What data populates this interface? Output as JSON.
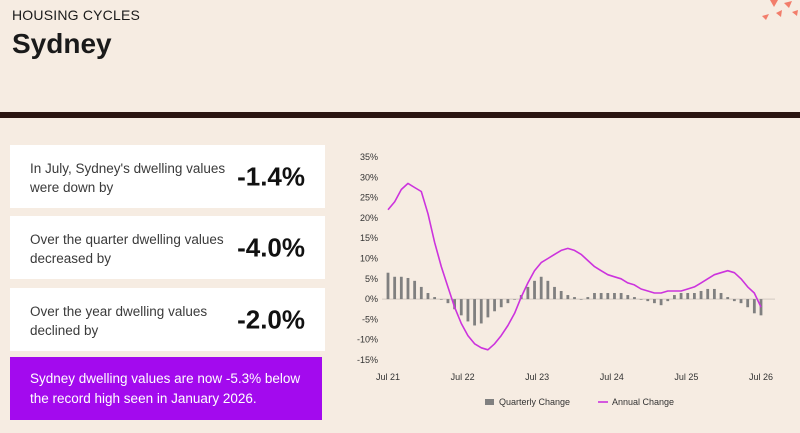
{
  "header": {
    "section_label": "HOUSING CYCLES",
    "title": "Sydney"
  },
  "stats": [
    {
      "text": "In July, Sydney's dwelling values were down by",
      "value": "-1.4%"
    },
    {
      "text": "Over the quarter dwelling values decreased by",
      "value": "-4.0%"
    },
    {
      "text": "Over the year dwelling values declined by",
      "value": "-2.0%"
    }
  ],
  "callout": {
    "text": "Sydney dwelling values are now -5.3% below the record high seen in January 2026."
  },
  "colors": {
    "background": "#f6ece2",
    "divider": "#2a1511",
    "callout_bg": "#a30aee",
    "bar": "#808080",
    "line": "#cc33dd"
  },
  "chart_data": {
    "type": "bar",
    "x_tick_labels": [
      "Jul 21",
      "Jul 22",
      "Jul 23",
      "Jul 24",
      "Jul 25",
      "Jul 26"
    ],
    "y_tick_labels": [
      "35%",
      "30%",
      "25%",
      "20%",
      "15%",
      "10%",
      "5%",
      "0%",
      "-5%",
      "-10%",
      "-15%"
    ],
    "ylim": [
      -15,
      35
    ],
    "grid": false,
    "legend_position": "bottom",
    "series": [
      {
        "name": "Quarterly Change",
        "type": "bar",
        "color": "#808080",
        "values": [
          6.5,
          5.5,
          5.5,
          5.2,
          4.5,
          3.0,
          1.5,
          0.5,
          0,
          -1.0,
          -2.5,
          -4.0,
          -5.5,
          -6.5,
          -6.0,
          -4.5,
          -3.0,
          -2.0,
          -1.0,
          0,
          1.0,
          3.0,
          4.5,
          5.5,
          4.5,
          3.0,
          2.0,
          1.0,
          0.5,
          0,
          0.5,
          1.5,
          1.5,
          1.5,
          1.5,
          1.5,
          1.0,
          0.5,
          0,
          -0.5,
          -1.0,
          -1.5,
          -0.5,
          1.0,
          1.5,
          1.5,
          1.5,
          2.0,
          2.5,
          2.5,
          1.5,
          0.5,
          -0.5,
          -1.0,
          -2.0,
          -3.5,
          -4.0
        ]
      },
      {
        "name": "Annual Change",
        "type": "line",
        "color": "#cc33dd",
        "values": [
          22.0,
          24.0,
          27.0,
          28.5,
          27.5,
          26.5,
          21.0,
          14.0,
          8.0,
          3.0,
          -2.0,
          -6.0,
          -9.0,
          -11.0,
          -12.0,
          -12.5,
          -11.0,
          -9.0,
          -6.5,
          -3.5,
          0.5,
          4.0,
          7.0,
          9.0,
          10.0,
          11.0,
          12.0,
          12.5,
          12.0,
          11.0,
          9.5,
          8.0,
          7.0,
          6.0,
          5.5,
          5.0,
          4.0,
          3.5,
          2.5,
          2.0,
          1.5,
          1.5,
          2.0,
          2.0,
          2.0,
          2.5,
          3.0,
          4.0,
          5.0,
          6.0,
          6.5,
          7.0,
          6.5,
          5.0,
          3.0,
          1.5,
          -2.0
        ]
      }
    ]
  }
}
